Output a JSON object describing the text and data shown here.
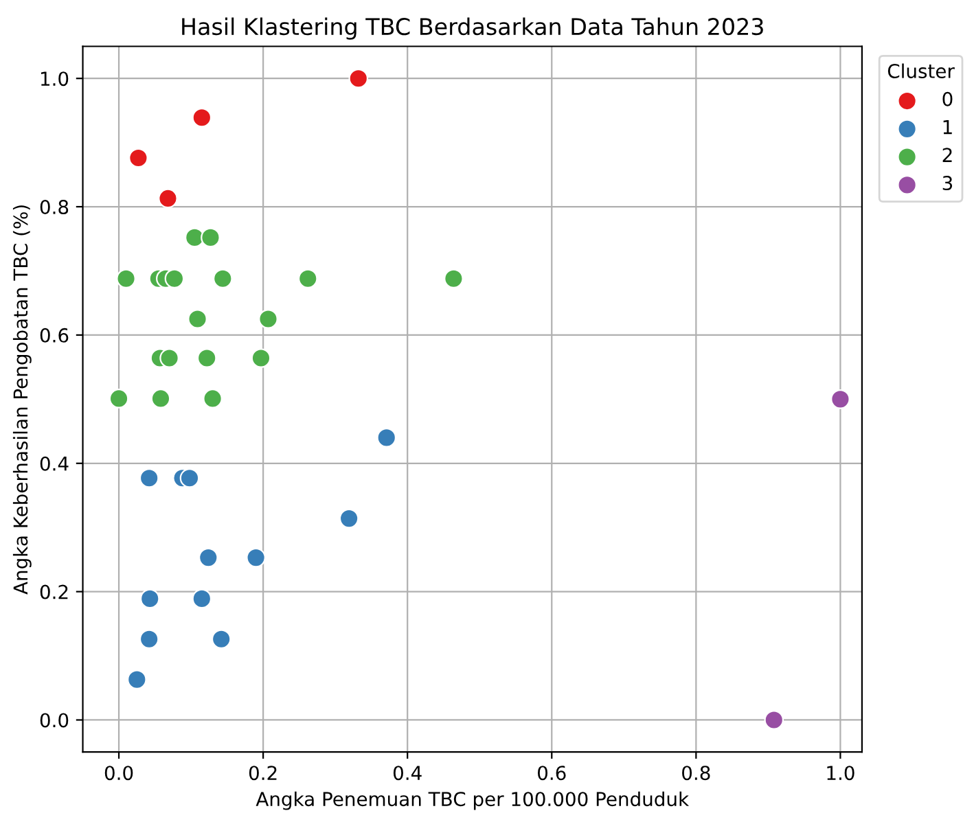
{
  "chart_data": {
    "type": "scatter",
    "title": "Hasil Klastering TBC Berdasarkan Data Tahun 2023",
    "xlabel": "Angka Penemuan TBC per 100.000 Penduduk",
    "ylabel": "Angka Keberhasilan Pengobatan TBC (%)",
    "legend_title": "Cluster",
    "legend": "top right",
    "grid": true,
    "marker": "circle",
    "xlim": [
      -0.05,
      1.03
    ],
    "ylim": [
      -0.05,
      1.05
    ],
    "xticks": [
      {
        "value": 0,
        "label": "0.0"
      },
      0.2,
      0.4,
      0.6,
      0.8,
      {
        "value": 1,
        "label": "1.0"
      }
    ],
    "yticks": [
      {
        "value": 0,
        "label": "0.0"
      },
      0.2,
      0.4,
      0.6,
      0.8,
      {
        "value": 1,
        "label": "1.0"
      }
    ],
    "series": [
      {
        "name": "0",
        "color": "#e41a1c",
        "x": [
          0.027,
          0.115,
          0.068,
          0.332
        ],
        "values": [
          0.876,
          0.939,
          0.813,
          1.0
        ]
      },
      {
        "name": "1",
        "color": "#377eb8",
        "x": [
          0.042,
          0.088,
          0.098,
          0.043,
          0.042,
          0.025,
          0.124,
          0.115,
          0.142,
          0.19,
          0.319,
          0.371
        ],
        "values": [
          0.377,
          0.377,
          0.377,
          0.189,
          0.126,
          0.063,
          0.253,
          0.189,
          0.126,
          0.253,
          0.314,
          0.44
        ]
      },
      {
        "name": "2",
        "color": "#4daf4a",
        "x": [
          0.0,
          0.01,
          0.055,
          0.065,
          0.077,
          0.144,
          0.262,
          0.464,
          0.105,
          0.127,
          0.109,
          0.207,
          0.057,
          0.07,
          0.122,
          0.197,
          0.058,
          0.13
        ],
        "values": [
          0.501,
          0.688,
          0.688,
          0.688,
          0.688,
          0.688,
          0.688,
          0.688,
          0.752,
          0.752,
          0.625,
          0.625,
          0.564,
          0.564,
          0.564,
          0.564,
          0.501,
          0.501
        ]
      },
      {
        "name": "3",
        "color": "#984ea3",
        "x": [
          0.908,
          1.0
        ],
        "values": [
          0.0,
          0.5
        ]
      }
    ]
  }
}
